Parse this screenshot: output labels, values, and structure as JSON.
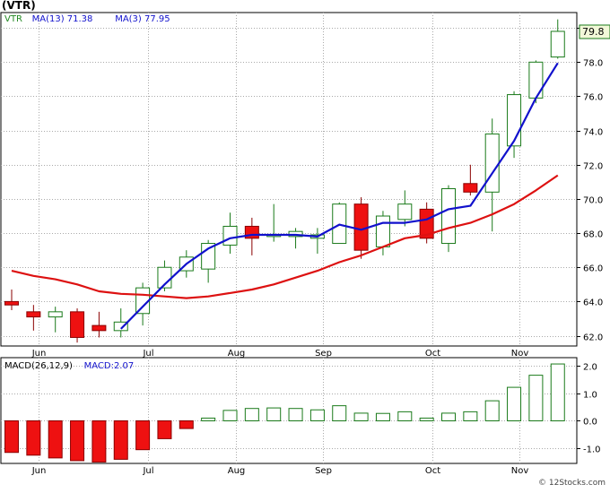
{
  "title": "(VTR)",
  "watermark": "© 12Stocks.com",
  "colors": {
    "up": "#1a7a1a",
    "down_fill": "#ee1111",
    "down_stroke": "#8a0000",
    "ma_fast": "#1111cc",
    "ma_slow": "#dd1111",
    "grid": "#aaaaaa",
    "price_box": "#1a7a1a"
  },
  "chart_data": [
    {
      "type": "candlestick",
      "legend": [
        {
          "label": "VTR",
          "color": "#228822"
        },
        {
          "label": "MA(13)",
          "value": "71.38",
          "color": "#1111cc"
        },
        {
          "label": "MA(3)",
          "value": "77.95",
          "color": "#1111cc"
        }
      ],
      "last_price": "79.8",
      "ylim": [
        61.4,
        80.9
      ],
      "yticks": [
        62.0,
        64.0,
        66.0,
        68.0,
        70.0,
        72.0,
        74.0,
        76.0,
        78.0,
        80.0
      ],
      "ytick_labels": [
        "62.0",
        "64.0",
        "66.0",
        "68.0",
        "70.0",
        "72.0",
        "74.0",
        "76.0",
        "78.0",
        "80.0"
      ],
      "months": [
        {
          "label": "Jun",
          "week": 1.25
        },
        {
          "label": "Jul",
          "week": 6.25
        },
        {
          "label": "Aug",
          "week": 10.25
        },
        {
          "label": "Sep",
          "week": 14.25
        },
        {
          "label": "Oct",
          "week": 19.25
        },
        {
          "label": "Nov",
          "week": 23.25
        }
      ],
      "candles": [
        {
          "week": 0,
          "open": 64.0,
          "high": 64.7,
          "low": 63.5,
          "close": 63.8
        },
        {
          "week": 1,
          "open": 63.4,
          "high": 63.8,
          "low": 62.3,
          "close": 63.1
        },
        {
          "week": 2,
          "open": 63.1,
          "high": 63.7,
          "low": 62.2,
          "close": 63.4
        },
        {
          "week": 3,
          "open": 63.4,
          "high": 63.6,
          "low": 61.6,
          "close": 61.9
        },
        {
          "week": 4,
          "open": 62.6,
          "high": 63.4,
          "low": 61.9,
          "close": 62.3
        },
        {
          "week": 5,
          "open": 62.3,
          "high": 63.6,
          "low": 61.9,
          "close": 62.8
        },
        {
          "week": 6,
          "open": 63.3,
          "high": 65.1,
          "low": 62.6,
          "close": 64.8
        },
        {
          "week": 7,
          "open": 64.8,
          "high": 66.4,
          "low": 64.6,
          "close": 66.0
        },
        {
          "week": 8,
          "open": 65.8,
          "high": 67.0,
          "low": 65.4,
          "close": 66.6
        },
        {
          "week": 9,
          "open": 65.9,
          "high": 67.6,
          "low": 65.1,
          "close": 67.4
        },
        {
          "week": 10,
          "open": 67.3,
          "high": 69.2,
          "low": 66.8,
          "close": 68.4
        },
        {
          "week": 11,
          "open": 68.4,
          "high": 68.9,
          "low": 66.7,
          "close": 67.7
        },
        {
          "week": 12,
          "open": 67.8,
          "high": 69.7,
          "low": 67.5,
          "close": 67.9
        },
        {
          "week": 13,
          "open": 67.8,
          "high": 68.3,
          "low": 67.1,
          "close": 68.1
        },
        {
          "week": 14,
          "open": 67.7,
          "high": 68.3,
          "low": 66.8,
          "close": 67.9
        },
        {
          "week": 15,
          "open": 67.4,
          "high": 69.8,
          "low": 67.4,
          "close": 69.7
        },
        {
          "week": 16,
          "open": 69.7,
          "high": 70.1,
          "low": 66.5,
          "close": 67.0
        },
        {
          "week": 17,
          "open": 67.2,
          "high": 69.3,
          "low": 66.7,
          "close": 69.0
        },
        {
          "week": 18,
          "open": 68.8,
          "high": 70.5,
          "low": 68.4,
          "close": 69.7
        },
        {
          "week": 19,
          "open": 69.4,
          "high": 69.8,
          "low": 67.4,
          "close": 67.7
        },
        {
          "week": 20,
          "open": 67.4,
          "high": 70.8,
          "low": 66.9,
          "close": 70.6
        },
        {
          "week": 21,
          "open": 70.9,
          "high": 72.0,
          "low": 70.2,
          "close": 70.4
        },
        {
          "week": 22,
          "open": 70.4,
          "high": 74.7,
          "low": 68.1,
          "close": 73.8
        },
        {
          "week": 23,
          "open": 73.1,
          "high": 76.3,
          "low": 72.4,
          "close": 76.1
        },
        {
          "week": 24,
          "open": 75.9,
          "high": 78.1,
          "low": 75.6,
          "close": 78.0
        },
        {
          "week": 25,
          "open": 78.3,
          "high": 80.5,
          "low": 78.2,
          "close": 79.8
        }
      ],
      "ma_fast": [
        {
          "week": 5,
          "value": 62.4
        },
        {
          "week": 6,
          "value": 63.7
        },
        {
          "week": 7,
          "value": 65.0
        },
        {
          "week": 8,
          "value": 66.2
        },
        {
          "week": 9,
          "value": 67.1
        },
        {
          "week": 10,
          "value": 67.7
        },
        {
          "week": 11,
          "value": 67.9
        },
        {
          "week": 12,
          "value": 67.9
        },
        {
          "week": 13,
          "value": 67.9
        },
        {
          "week": 14,
          "value": 67.8
        },
        {
          "week": 15,
          "value": 68.5
        },
        {
          "week": 16,
          "value": 68.2
        },
        {
          "week": 17,
          "value": 68.6
        },
        {
          "week": 18,
          "value": 68.6
        },
        {
          "week": 19,
          "value": 68.8
        },
        {
          "week": 20,
          "value": 69.4
        },
        {
          "week": 21,
          "value": 69.6
        },
        {
          "week": 22,
          "value": 71.5
        },
        {
          "week": 23,
          "value": 73.4
        },
        {
          "week": 24,
          "value": 75.9
        },
        {
          "week": 25,
          "value": 77.95
        }
      ],
      "ma_slow": [
        {
          "week": 0,
          "value": 65.8
        },
        {
          "week": 1,
          "value": 65.5
        },
        {
          "week": 2,
          "value": 65.3
        },
        {
          "week": 3,
          "value": 65.0
        },
        {
          "week": 4,
          "value": 64.6
        },
        {
          "week": 5,
          "value": 64.45
        },
        {
          "week": 6,
          "value": 64.4
        },
        {
          "week": 7,
          "value": 64.3
        },
        {
          "week": 8,
          "value": 64.2
        },
        {
          "week": 9,
          "value": 64.3
        },
        {
          "week": 10,
          "value": 64.5
        },
        {
          "week": 11,
          "value": 64.7
        },
        {
          "week": 12,
          "value": 65.0
        },
        {
          "week": 13,
          "value": 65.4
        },
        {
          "week": 14,
          "value": 65.8
        },
        {
          "week": 15,
          "value": 66.3
        },
        {
          "week": 16,
          "value": 66.7
        },
        {
          "week": 17,
          "value": 67.2
        },
        {
          "week": 18,
          "value": 67.7
        },
        {
          "week": 19,
          "value": 67.9
        },
        {
          "week": 20,
          "value": 68.3
        },
        {
          "week": 21,
          "value": 68.6
        },
        {
          "week": 22,
          "value": 69.1
        },
        {
          "week": 23,
          "value": 69.7
        },
        {
          "week": 24,
          "value": 70.5
        },
        {
          "week": 25,
          "value": 71.38
        }
      ]
    },
    {
      "type": "bar",
      "legend": [
        {
          "label": "MACD(26,12,9)",
          "color": "#000000"
        },
        {
          "label": "MACD:2.07",
          "color": "#1111cc"
        }
      ],
      "ylim": [
        -1.55,
        2.3
      ],
      "yticks": [
        -1.0,
        0.0,
        1.0,
        2.0
      ],
      "ytick_labels": [
        "-1.0",
        "0.0",
        "1.0",
        "2.0"
      ],
      "months": [
        {
          "label": "Jun",
          "week": 1.25
        },
        {
          "label": "Jul",
          "week": 6.25
        },
        {
          "label": "Aug",
          "week": 10.25
        },
        {
          "label": "Sep",
          "week": 14.25
        },
        {
          "label": "Oct",
          "week": 19.25
        },
        {
          "label": "Nov",
          "week": 23.25
        }
      ],
      "values": [
        -1.15,
        -1.25,
        -1.35,
        -1.45,
        -1.5,
        -1.4,
        -1.05,
        -0.65,
        -0.28,
        0.1,
        0.38,
        0.45,
        0.47,
        0.45,
        0.4,
        0.55,
        0.28,
        0.27,
        0.33,
        0.1,
        0.28,
        0.33,
        0.73,
        1.22,
        1.66,
        2.07
      ]
    }
  ]
}
